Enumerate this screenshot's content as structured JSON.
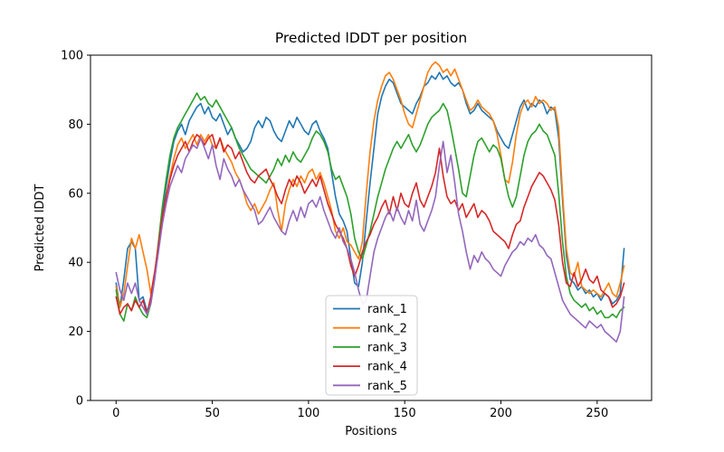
{
  "figure": {
    "title": "Predicted lDDT per position",
    "xlabel": "Positions",
    "ylabel": "Predicted lDDT"
  },
  "chart_data": {
    "type": "line",
    "title": "Predicted lDDT per position",
    "xlabel": "Positions",
    "ylabel": "Predicted lDDT",
    "xlim": [
      -13.3,
      278.3
    ],
    "ylim": [
      0,
      100
    ],
    "xticks": [
      0,
      50,
      100,
      150,
      200,
      250
    ],
    "yticks": [
      0,
      20,
      40,
      60,
      80,
      100
    ],
    "grid": false,
    "legend_position": "inside-bottom-center",
    "legend_border_color": "#cccccc",
    "x": [
      0,
      2,
      4,
      6,
      8,
      10,
      12,
      14,
      16,
      18,
      20,
      22,
      24,
      26,
      28,
      30,
      32,
      34,
      36,
      38,
      40,
      42,
      44,
      46,
      48,
      50,
      52,
      54,
      56,
      58,
      60,
      62,
      64,
      66,
      68,
      70,
      72,
      74,
      76,
      78,
      80,
      82,
      84,
      86,
      88,
      90,
      92,
      94,
      96,
      98,
      100,
      102,
      104,
      106,
      108,
      110,
      112,
      114,
      116,
      118,
      120,
      122,
      124,
      126,
      128,
      130,
      132,
      134,
      136,
      138,
      140,
      142,
      144,
      146,
      148,
      150,
      152,
      154,
      156,
      158,
      160,
      162,
      164,
      166,
      168,
      170,
      172,
      174,
      176,
      178,
      180,
      182,
      184,
      186,
      188,
      190,
      192,
      194,
      196,
      198,
      200,
      202,
      204,
      206,
      208,
      210,
      212,
      214,
      216,
      218,
      220,
      222,
      224,
      226,
      228,
      230,
      232,
      234,
      236,
      238,
      240,
      242,
      244,
      246,
      248,
      250,
      252,
      254,
      256,
      258,
      260,
      262,
      264
    ],
    "series": [
      {
        "name": "rank_1",
        "color": "#1f77b4",
        "values": [
          34,
          27,
          35,
          44,
          46,
          44,
          29,
          30,
          26,
          28,
          35,
          45,
          54,
          62,
          69,
          75,
          78,
          80,
          77,
          81,
          83,
          85,
          86,
          83,
          85,
          82,
          81,
          83,
          80,
          77,
          79,
          76,
          74,
          72,
          73,
          75,
          79,
          81,
          79,
          82,
          81,
          78,
          76,
          75,
          78,
          81,
          79,
          82,
          80,
          78,
          77,
          80,
          81,
          78,
          76,
          73,
          66,
          59,
          54,
          52,
          49,
          41,
          34,
          33,
          40,
          52,
          63,
          73,
          83,
          88,
          91,
          93,
          92,
          89,
          86,
          85,
          84,
          83,
          86,
          88,
          91,
          92,
          94,
          93,
          95,
          93,
          94,
          92,
          91,
          92,
          90,
          86,
          83,
          84,
          86,
          84,
          83,
          82,
          81,
          78,
          76,
          74,
          73,
          77,
          81,
          85,
          87,
          84,
          86,
          85,
          87,
          86,
          83,
          85,
          84,
          76,
          58,
          42,
          35,
          34,
          32,
          33,
          31,
          32,
          30,
          31,
          29,
          31,
          30,
          28,
          29,
          31,
          44
        ]
      },
      {
        "name": "rank_2",
        "color": "#ff7f0e",
        "values": [
          33,
          27,
          31,
          39,
          47,
          44,
          48,
          43,
          38,
          31,
          37,
          44,
          51,
          59,
          65,
          70,
          74,
          76,
          73,
          75,
          77,
          74,
          77,
          75,
          77,
          74,
          73,
          76,
          73,
          71,
          69,
          66,
          64,
          61,
          57,
          55,
          57,
          54,
          56,
          58,
          61,
          63,
          55,
          49,
          57,
          61,
          64,
          62,
          65,
          63,
          66,
          67,
          64,
          66,
          63,
          59,
          55,
          49,
          47,
          50,
          46,
          45,
          43,
          41,
          46,
          60,
          72,
          81,
          87,
          91,
          94,
          95,
          93,
          90,
          87,
          83,
          80,
          79,
          83,
          87,
          91,
          95,
          97,
          98,
          97,
          95,
          96,
          94,
          96,
          93,
          90,
          87,
          84,
          85,
          87,
          85,
          84,
          83,
          81,
          77,
          71,
          64,
          63,
          69,
          77,
          83,
          86,
          87,
          85,
          88,
          86,
          87,
          86,
          84,
          85,
          79,
          60,
          44,
          37,
          36,
          40,
          33,
          32,
          31,
          32,
          31,
          30,
          32,
          34,
          31,
          30,
          34,
          39
        ]
      },
      {
        "name": "rank_3",
        "color": "#2ca02c",
        "values": [
          32,
          25,
          23,
          28,
          26,
          30,
          27,
          25,
          24,
          28,
          36,
          46,
          56,
          64,
          71,
          76,
          79,
          81,
          83,
          85,
          87,
          89,
          87,
          88,
          86,
          85,
          87,
          85,
          83,
          81,
          79,
          76,
          73,
          71,
          69,
          67,
          66,
          65,
          64,
          63,
          65,
          67,
          70,
          68,
          71,
          69,
          72,
          70,
          69,
          71,
          73,
          76,
          78,
          77,
          75,
          72,
          67,
          64,
          65,
          62,
          59,
          54,
          47,
          43,
          41,
          45,
          49,
          54,
          59,
          63,
          67,
          70,
          73,
          75,
          73,
          75,
          77,
          74,
          72,
          74,
          77,
          80,
          82,
          83,
          84,
          86,
          84,
          79,
          73,
          67,
          60,
          59,
          65,
          71,
          75,
          76,
          74,
          72,
          74,
          73,
          70,
          64,
          59,
          56,
          59,
          65,
          71,
          75,
          77,
          78,
          80,
          78,
          77,
          74,
          71,
          60,
          46,
          36,
          31,
          29,
          28,
          27,
          28,
          26,
          27,
          25,
          26,
          24,
          24,
          25,
          24,
          26,
          27
        ]
      },
      {
        "name": "rank_4",
        "color": "#d62728",
        "values": [
          30,
          25,
          27,
          28,
          26,
          29,
          27,
          29,
          25,
          30,
          37,
          45,
          53,
          59,
          64,
          68,
          71,
          73,
          75,
          72,
          75,
          77,
          76,
          74,
          76,
          77,
          73,
          76,
          72,
          74,
          73,
          70,
          72,
          69,
          66,
          64,
          63,
          65,
          66,
          67,
          64,
          62,
          59,
          57,
          61,
          64,
          62,
          65,
          63,
          60,
          62,
          64,
          62,
          65,
          61,
          57,
          54,
          51,
          49,
          47,
          44,
          39,
          36,
          39,
          43,
          46,
          48,
          51,
          53,
          56,
          58,
          54,
          59,
          55,
          60,
          57,
          56,
          60,
          63,
          58,
          56,
          59,
          62,
          66,
          73,
          65,
          59,
          57,
          58,
          55,
          57,
          53,
          55,
          57,
          53,
          55,
          54,
          52,
          49,
          48,
          47,
          46,
          44,
          48,
          51,
          52,
          56,
          59,
          62,
          64,
          66,
          65,
          63,
          61,
          58,
          51,
          40,
          34,
          33,
          37,
          33,
          35,
          38,
          35,
          34,
          36,
          32,
          31,
          30,
          27,
          28,
          30,
          34
        ]
      },
      {
        "name": "rank_5",
        "color": "#9467bd",
        "values": [
          37,
          32,
          29,
          34,
          31,
          34,
          29,
          27,
          25,
          28,
          35,
          43,
          51,
          57,
          62,
          65,
          68,
          66,
          70,
          72,
          74,
          73,
          76,
          73,
          70,
          74,
          68,
          64,
          70,
          67,
          65,
          62,
          64,
          61,
          59,
          57,
          55,
          51,
          52,
          54,
          56,
          53,
          51,
          49,
          48,
          52,
          55,
          52,
          56,
          53,
          57,
          58,
          56,
          59,
          55,
          52,
          49,
          47,
          50,
          46,
          44,
          41,
          37,
          32,
          28,
          29,
          36,
          43,
          47,
          50,
          53,
          55,
          52,
          56,
          53,
          51,
          55,
          52,
          58,
          51,
          49,
          52,
          55,
          59,
          68,
          75,
          66,
          71,
          63,
          54,
          49,
          43,
          38,
          42,
          40,
          43,
          41,
          40,
          38,
          37,
          36,
          39,
          41,
          43,
          44,
          46,
          45,
          47,
          46,
          48,
          45,
          44,
          42,
          41,
          37,
          33,
          29,
          27,
          25,
          24,
          23,
          22,
          21,
          23,
          22,
          21,
          22,
          20,
          19,
          18,
          17,
          20,
          30
        ]
      }
    ]
  }
}
